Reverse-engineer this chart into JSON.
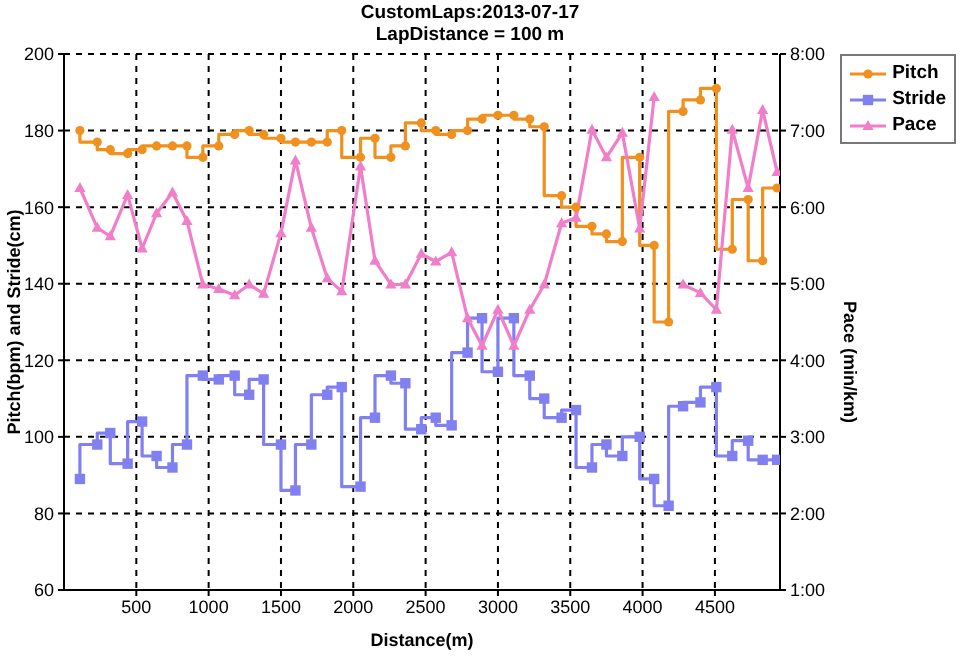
{
  "chart_data": {
    "type": "line",
    "title": "CustomLaps:2013-07-17",
    "subtitle": "LapDistance = 100 m",
    "xlabel": "Distance(m)",
    "ylabel": "Pitch(bpm) and Stride(cm)",
    "y2label": "Pace (min/km)",
    "x": [
      110,
      230,
      320,
      440,
      540,
      640,
      750,
      850,
      960,
      1070,
      1180,
      1280,
      1380,
      1500,
      1600,
      1710,
      1820,
      1920,
      2050,
      2150,
      2260,
      2360,
      2470,
      2570,
      2680,
      2790,
      2890,
      3000,
      3110,
      3220,
      3320,
      3440,
      3540,
      3650,
      3750,
      3860,
      3980,
      4080,
      4180,
      4280,
      4400,
      4510,
      4620,
      4730,
      4830,
      4930
    ],
    "series": [
      {
        "name": "Pitch",
        "type": "step",
        "marker": "circle",
        "color": "#f0901e",
        "values": [
          180,
          177,
          175,
          174,
          175,
          176,
          176,
          176,
          173,
          176,
          179,
          180,
          179,
          178,
          177,
          177,
          177,
          180,
          173,
          178,
          173,
          176,
          182,
          180,
          179,
          180,
          183,
          184,
          184,
          183,
          181,
          163,
          160,
          155,
          153,
          151,
          173,
          150,
          130,
          185,
          188,
          191,
          149,
          162,
          146,
          165
        ]
      },
      {
        "name": "Stride",
        "type": "step",
        "marker": "square",
        "color": "#8080f0",
        "values": [
          89,
          98,
          101,
          93,
          104,
          95,
          92,
          98,
          116,
          115,
          116,
          111,
          115,
          98,
          86,
          98,
          111,
          113,
          87,
          105,
          116,
          114,
          102,
          105,
          103,
          122,
          131,
          117,
          131,
          116,
          110,
          105,
          107,
          92,
          98,
          95,
          100,
          89,
          82,
          108,
          109,
          113,
          95,
          99,
          94,
          94
        ]
      },
      {
        "name": "Pace",
        "type": "line",
        "marker": "triangle",
        "axis": "y2",
        "color": "#f07ec8",
        "values": [
          6.25,
          5.73,
          5.62,
          6.16,
          5.46,
          5.92,
          6.19,
          5.82,
          4.99,
          4.93,
          4.85,
          4.99,
          4.87,
          5.66,
          6.61,
          5.73,
          5.07,
          4.9,
          6.53,
          5.3,
          4.99,
          4.99,
          5.39,
          5.29,
          5.41,
          4.55,
          4.19,
          4.66,
          4.19,
          4.66,
          4.99,
          5.79,
          5.86,
          7.01,
          6.65,
          6.97,
          5.72,
          7.44,
          null,
          4.99,
          4.88,
          4.66,
          7.01,
          6.25,
          7.27,
          6.46
        ]
      }
    ],
    "xlim": [
      0,
      4950
    ],
    "xticks": [
      500,
      1000,
      1500,
      2000,
      2500,
      3000,
      3500,
      4000,
      4500
    ],
    "ylim": [
      60,
      200
    ],
    "yticks": [
      60,
      80,
      100,
      120,
      140,
      160,
      180,
      200
    ],
    "y2lim": [
      1,
      8
    ],
    "y2ticks": [
      {
        "value": 1,
        "label": "1:00"
      },
      {
        "value": 2,
        "label": "2:00"
      },
      {
        "value": 3,
        "label": "3:00"
      },
      {
        "value": 4,
        "label": "4:00"
      },
      {
        "value": 5,
        "label": "5:00"
      },
      {
        "value": 6,
        "label": "6:00"
      },
      {
        "value": 7,
        "label": "7:00"
      },
      {
        "value": 8,
        "label": "8:00"
      }
    ],
    "grid": true,
    "legend": "top right",
    "line_style": "solid"
  }
}
